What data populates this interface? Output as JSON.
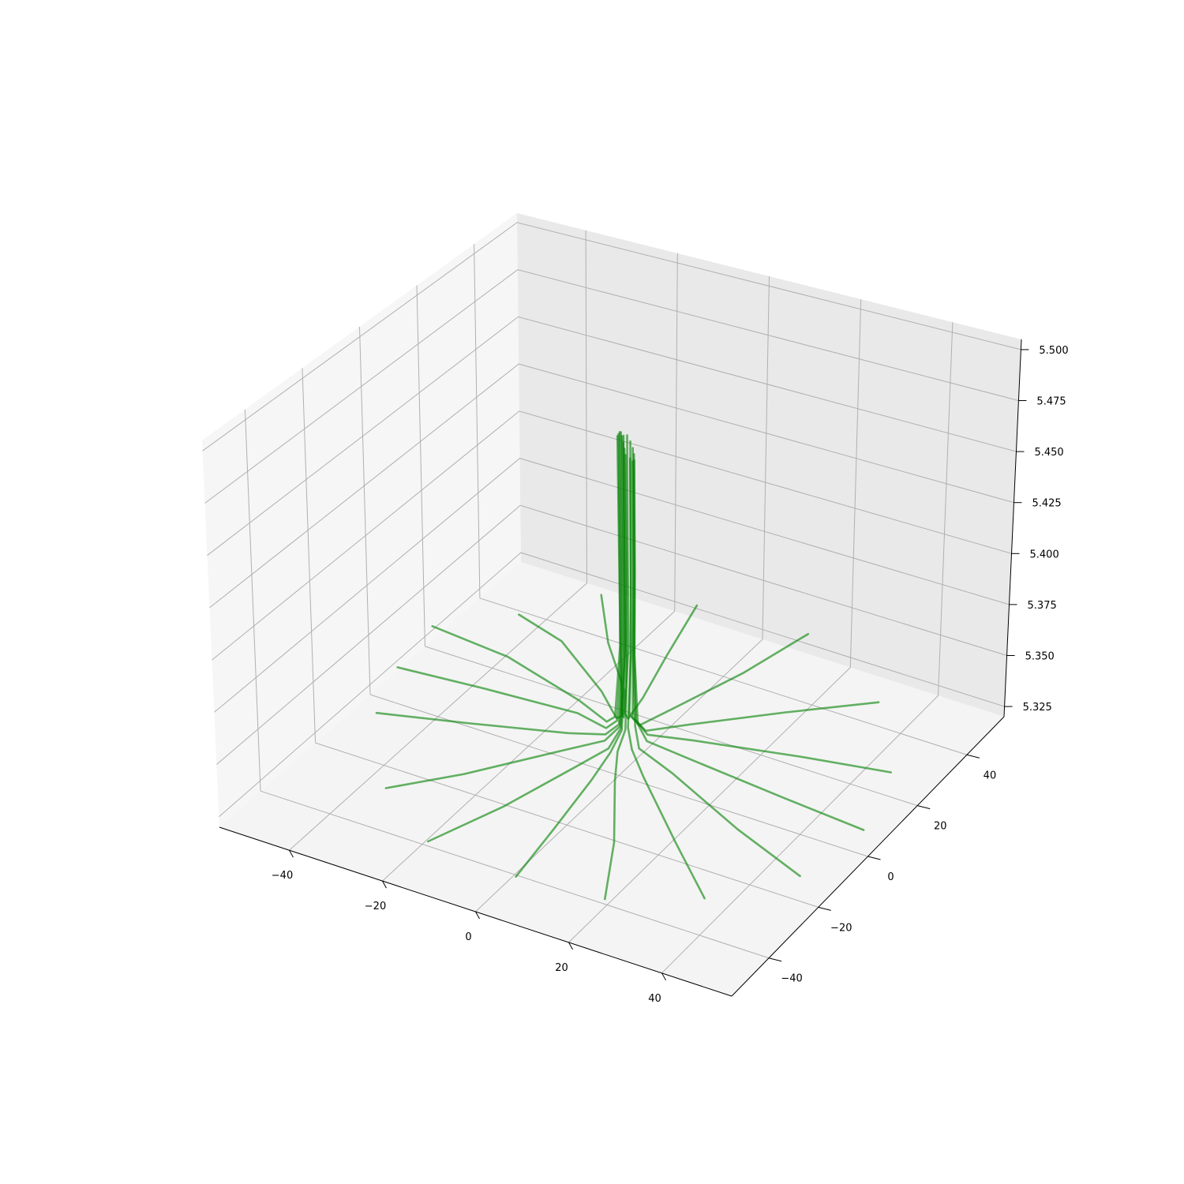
{
  "chart_data": {
    "type": "line",
    "projection": "3d",
    "title": "",
    "xlabel": "",
    "ylabel": "",
    "zlabel": "",
    "xlim": [
      -55,
      55
    ],
    "ylim": [
      -55,
      55
    ],
    "zlim": [
      5.32,
      5.505
    ],
    "x_ticks": [
      -40,
      -20,
      0,
      20,
      40
    ],
    "y_ticks": [
      -40,
      -20,
      0,
      20,
      40
    ],
    "z_ticks": [
      5.325,
      5.35,
      5.375,
      5.4,
      5.425,
      5.45,
      5.475,
      5.5
    ],
    "x_tick_labels": [
      "−40",
      "−20",
      "0",
      "20",
      "40"
    ],
    "y_tick_labels": [
      "−40",
      "−20",
      "0",
      "20",
      "40"
    ],
    "z_tick_labels": [
      "5.325",
      "5.350",
      "5.375",
      "5.400",
      "5.425",
      "5.450",
      "5.475",
      "5.500"
    ],
    "grid": true,
    "line_color": "#008000",
    "line_opacity": 0.6,
    "series": [
      {
        "values": [
          [
            -40,
            30,
            5.335
          ],
          [
            -28,
            26,
            5.335
          ],
          [
            -12,
            14,
            5.336
          ],
          [
            -4,
            6,
            5.338
          ],
          [
            -1,
            3,
            5.345
          ],
          [
            -1.5,
            3.2,
            5.38
          ],
          [
            -1.6,
            3.0,
            5.42
          ],
          [
            -1.8,
            2.8,
            5.482
          ]
        ]
      },
      {
        "values": [
          [
            -52,
            18,
            5.335
          ],
          [
            -34,
            16,
            5.335
          ],
          [
            -14,
            9,
            5.336
          ],
          [
            -5,
            4,
            5.338
          ],
          [
            -2,
            2,
            5.345
          ],
          [
            -1.2,
            2.6,
            5.38
          ],
          [
            -1.1,
            2.4,
            5.42
          ],
          [
            -1.2,
            2.2,
            5.484
          ]
        ]
      },
      {
        "values": [
          [
            -50,
            2,
            5.335
          ],
          [
            -32,
            4,
            5.335
          ],
          [
            -12,
            5,
            5.336
          ],
          [
            -4,
            2,
            5.338
          ],
          [
            -1,
            1,
            5.345
          ],
          [
            -0.6,
            2.0,
            5.38
          ],
          [
            -0.5,
            1.8,
            5.42
          ],
          [
            -0.6,
            1.6,
            5.486
          ]
        ]
      },
      {
        "values": [
          [
            -45,
            -14,
            5.335
          ],
          [
            -28,
            -8,
            5.335
          ],
          [
            -10,
            -2,
            5.336
          ],
          [
            -3,
            0,
            5.338
          ],
          [
            0,
            0,
            5.345
          ],
          [
            0,
            1.4,
            5.38
          ],
          [
            0.1,
            1.2,
            5.42
          ],
          [
            0,
            1,
            5.487
          ]
        ]
      },
      {
        "values": [
          [
            -30,
            -36,
            5.335
          ],
          [
            -20,
            -24,
            5.335
          ],
          [
            -8,
            -8,
            5.336
          ],
          [
            -2,
            -2,
            5.338
          ],
          [
            0.5,
            -0.5,
            5.345
          ],
          [
            0.6,
            0.8,
            5.38
          ],
          [
            0.7,
            0.6,
            5.42
          ],
          [
            0.6,
            0.4,
            5.486
          ]
        ]
      },
      {
        "values": [
          [
            -14,
            -48,
            5.335
          ],
          [
            -8,
            -30,
            5.335
          ],
          [
            -3,
            -12,
            5.336
          ],
          [
            0,
            -4,
            5.338
          ],
          [
            1,
            -1,
            5.345
          ],
          [
            1.2,
            0.2,
            5.38
          ],
          [
            1.3,
            0,
            5.42
          ],
          [
            1.2,
            -0.2,
            5.484
          ]
        ]
      },
      {
        "values": [
          [
            6,
            -50,
            5.335
          ],
          [
            4,
            -32,
            5.335
          ],
          [
            2,
            -14,
            5.336
          ],
          [
            1,
            -5,
            5.338
          ],
          [
            1.5,
            -1.5,
            5.345
          ],
          [
            1.8,
            -0.4,
            5.38
          ],
          [
            1.9,
            -0.6,
            5.42
          ],
          [
            1.8,
            -0.8,
            5.482
          ]
        ]
      },
      {
        "values": [
          [
            24,
            -48,
            5.335
          ],
          [
            16,
            -30,
            5.335
          ],
          [
            6,
            -12,
            5.336
          ],
          [
            2,
            -4,
            5.338
          ],
          [
            2,
            -1,
            5.345
          ],
          [
            2.4,
            -1.0,
            5.38
          ],
          [
            2.5,
            -1.2,
            5.42
          ],
          [
            2.4,
            -1.4,
            5.48
          ]
        ]
      },
      {
        "values": [
          [
            40,
            -38,
            5.335
          ],
          [
            26,
            -24,
            5.335
          ],
          [
            10,
            -8,
            5.336
          ],
          [
            4,
            -2,
            5.338
          ],
          [
            2,
            0,
            5.345
          ],
          [
            2.8,
            -0.4,
            5.38
          ],
          [
            3.0,
            -0.6,
            5.42
          ],
          [
            3.0,
            -0.8,
            5.478
          ]
        ]
      },
      {
        "values": [
          [
            52,
            -22,
            5.335
          ],
          [
            34,
            -14,
            5.335
          ],
          [
            14,
            -4,
            5.336
          ],
          [
            5,
            -1,
            5.338
          ],
          [
            3,
            1,
            5.345
          ],
          [
            3.0,
            0.2,
            5.38
          ],
          [
            3.2,
            0,
            5.42
          ],
          [
            3.2,
            -0.2,
            5.476
          ]
        ]
      },
      {
        "values": [
          [
            55,
            -2,
            5.335
          ],
          [
            36,
            0,
            5.335
          ],
          [
            14,
            2,
            5.336
          ],
          [
            5,
            2,
            5.338
          ],
          [
            3,
            2,
            5.345
          ],
          [
            3.0,
            0.8,
            5.38
          ],
          [
            3.2,
            0.6,
            5.42
          ],
          [
            3.2,
            0.4,
            5.476
          ]
        ]
      },
      {
        "values": [
          [
            50,
            18,
            5.335
          ],
          [
            32,
            14,
            5.335
          ],
          [
            12,
            8,
            5.336
          ],
          [
            4,
            4,
            5.338
          ],
          [
            2,
            3,
            5.345
          ],
          [
            2.6,
            1.4,
            5.38
          ],
          [
            2.8,
            1.2,
            5.42
          ],
          [
            2.8,
            1.0,
            5.478
          ]
        ]
      },
      {
        "values": [
          [
            36,
            38,
            5.335
          ],
          [
            22,
            26,
            5.335
          ],
          [
            8,
            12,
            5.336
          ],
          [
            3,
            5,
            5.338
          ],
          [
            1,
            3.5,
            5.345
          ],
          [
            2.0,
            2.0,
            5.38
          ],
          [
            2.2,
            1.8,
            5.42
          ],
          [
            2.2,
            1.6,
            5.48
          ]
        ]
      },
      {
        "values": [
          [
            12,
            52,
            5.335
          ],
          [
            8,
            34,
            5.335
          ],
          [
            3,
            16,
            5.336
          ],
          [
            1,
            6,
            5.338
          ],
          [
            0,
            4,
            5.345
          ],
          [
            1.2,
            2.6,
            5.38
          ],
          [
            1.3,
            2.4,
            5.42
          ],
          [
            1.3,
            2.2,
            5.482
          ]
        ]
      },
      {
        "values": [
          [
            -12,
            50,
            5.335
          ],
          [
            -8,
            32,
            5.335
          ],
          [
            -4,
            16,
            5.336
          ],
          [
            -2,
            7,
            5.338
          ],
          [
            -1,
            4,
            5.345
          ],
          [
            0.4,
            3.0,
            5.38
          ],
          [
            0.4,
            2.8,
            5.42
          ],
          [
            0.4,
            2.6,
            5.484
          ]
        ]
      },
      {
        "values": [
          [
            -30,
            44,
            5.335
          ],
          [
            -20,
            30,
            5.335
          ],
          [
            -8,
            16,
            5.336
          ],
          [
            -3,
            7,
            5.338
          ],
          [
            -1.5,
            3.6,
            5.345
          ],
          [
            -0.4,
            3.2,
            5.38
          ],
          [
            -0.5,
            3.0,
            5.42
          ],
          [
            -0.5,
            2.8,
            5.483
          ]
        ]
      }
    ]
  }
}
